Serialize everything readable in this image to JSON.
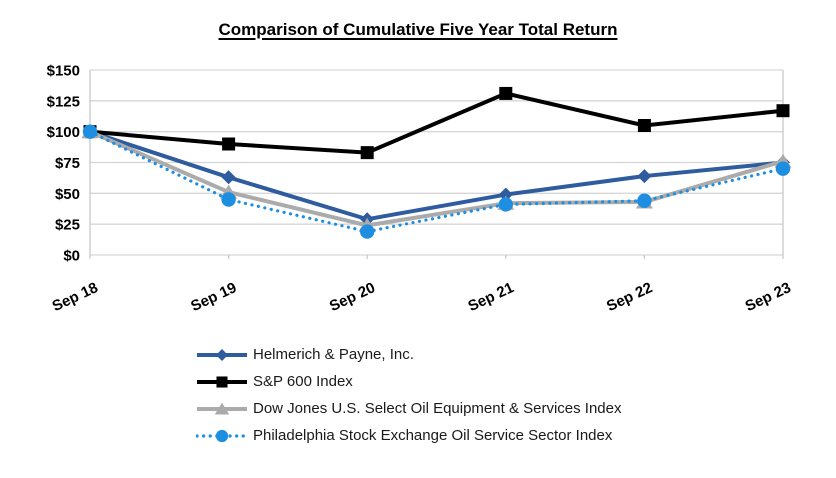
{
  "title": "Comparison of Cumulative Five Year Total Return",
  "chart_data": {
    "type": "line",
    "categories": [
      "Sep 18",
      "Sep 19",
      "Sep 20",
      "Sep 21",
      "Sep 22",
      "Sep 23"
    ],
    "series": [
      {
        "name": "Helmerich & Payne, Inc.",
        "color": "#2E5C9E",
        "marker": "diamond",
        "line_style": "solid",
        "values": [
          100,
          63,
          29,
          49,
          64,
          75
        ]
      },
      {
        "name": "S&P 600 Index",
        "color": "#000000",
        "marker": "square",
        "line_style": "solid",
        "values": [
          100,
          90,
          83,
          131,
          105,
          117
        ]
      },
      {
        "name": "Dow Jones U.S. Select Oil Equipment & Services Index",
        "color": "#ABABAB",
        "marker": "triangle",
        "line_style": "solid",
        "values": [
          100,
          51,
          24,
          42,
          43,
          76
        ]
      },
      {
        "name": "Philadelphia Stock Exchange Oil Service Sector Index",
        "color": "#1E8FE0",
        "marker": "circle",
        "line_style": "dotted",
        "values": [
          100,
          45,
          19,
          41,
          44,
          70
        ]
      }
    ],
    "ylim": [
      0,
      150
    ],
    "ytick_step": 25,
    "ytick_labels": [
      "$0",
      "$25",
      "$50",
      "$75",
      "$100",
      "$125",
      "$150"
    ],
    "grid": true,
    "legend_position": "bottom",
    "grid_color": "#D6D6D6",
    "axis_color": "#C9C9C9",
    "currency_prefix": "$"
  }
}
